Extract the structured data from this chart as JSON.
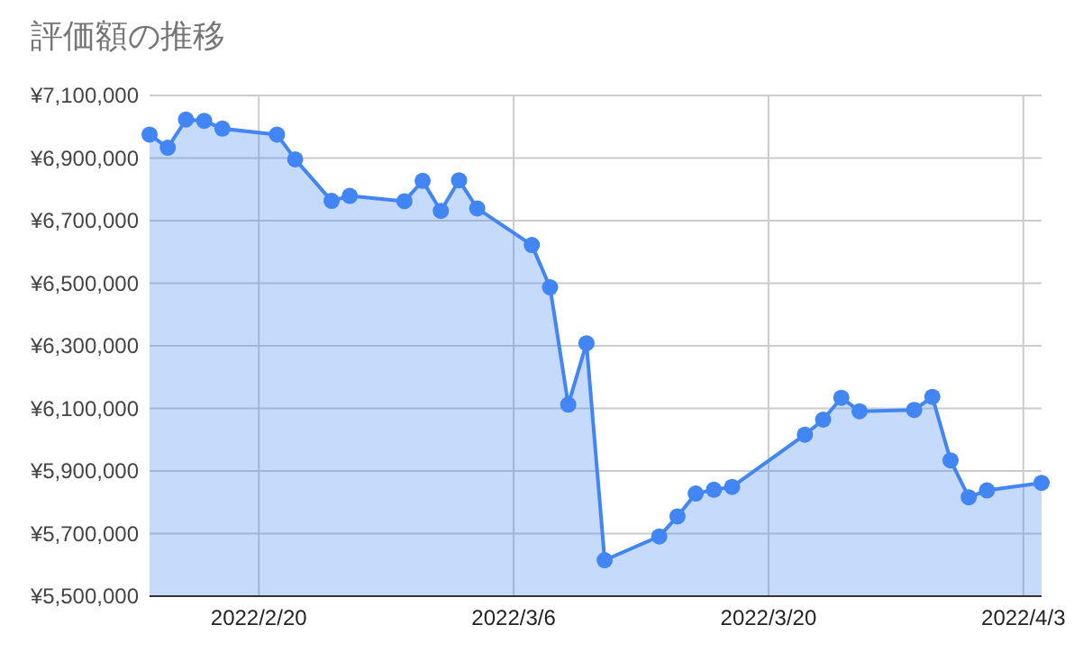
{
  "chart_data": {
    "type": "area",
    "title": "評価額の推移",
    "x": [
      "2022-02-14",
      "2022-02-15",
      "2022-02-16",
      "2022-02-17",
      "2022-02-18",
      "2022-02-21",
      "2022-02-22",
      "2022-02-24",
      "2022-02-25",
      "2022-02-28",
      "2022-03-01",
      "2022-03-02",
      "2022-03-03",
      "2022-03-04",
      "2022-03-07",
      "2022-03-08",
      "2022-03-09",
      "2022-03-10",
      "2022-03-11",
      "2022-03-14",
      "2022-03-15",
      "2022-03-16",
      "2022-03-17",
      "2022-03-18",
      "2022-03-22",
      "2022-03-23",
      "2022-03-24",
      "2022-03-25",
      "2022-03-28",
      "2022-03-29",
      "2022-03-30",
      "2022-03-31",
      "2022-04-01",
      "2022-04-04"
    ],
    "series": [
      {
        "color": "#4285f4",
        "values": [
          6975000,
          6933000,
          7023000,
          7019000,
          6994000,
          6975000,
          6896000,
          6763000,
          6779000,
          6762000,
          6827000,
          6731000,
          6829000,
          6739000,
          6622000,
          6487000,
          6112000,
          6308000,
          5615000,
          5691000,
          5755000,
          5828000,
          5840000,
          5849000,
          6016000,
          6064000,
          6134000,
          6091000,
          6095000,
          6137000,
          5934000,
          5816000,
          5838000,
          5862000
        ]
      }
    ],
    "xlim": [
      "2022-02-14",
      "2022-04-04"
    ],
    "xticks": [
      {
        "value": "2022-02-20",
        "label": "2022/2/20"
      },
      {
        "value": "2022-03-06",
        "label": "2022/3/6"
      },
      {
        "value": "2022-03-20",
        "label": "2022/3/20"
      },
      {
        "value": "2022-04-03",
        "label": "2022/4/3"
      }
    ],
    "ylim": [
      5500000,
      7100000
    ],
    "yticks": [
      {
        "value": 5500000,
        "label": "¥5,500,000"
      },
      {
        "value": 5700000,
        "label": "¥5,700,000"
      },
      {
        "value": 5900000,
        "label": "¥5,900,000"
      },
      {
        "value": 6100000,
        "label": "¥6,100,000"
      },
      {
        "value": 6300000,
        "label": "¥6,300,000"
      },
      {
        "value": 6500000,
        "label": "¥6,500,000"
      },
      {
        "value": 6700000,
        "label": "¥6,700,000"
      },
      {
        "value": 6900000,
        "label": "¥6,900,000"
      },
      {
        "value": 7100000,
        "label": "¥7,100,000"
      }
    ],
    "grid": true,
    "marker": "circle",
    "line_style": "solid"
  }
}
